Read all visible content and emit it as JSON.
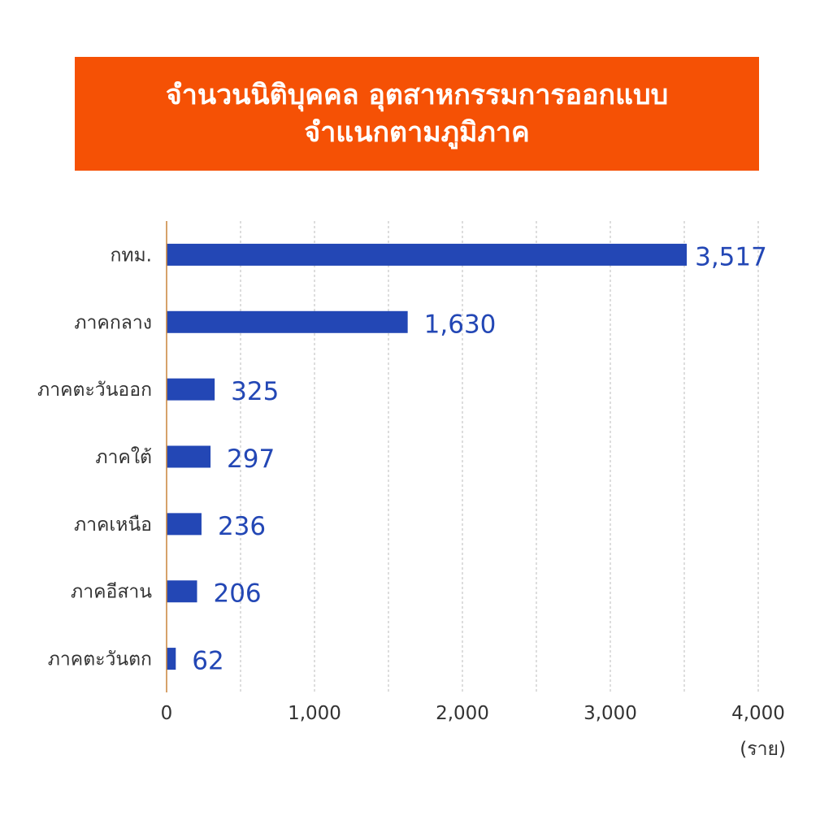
{
  "title": {
    "line1": "จำนวนนิติบุคคล อุตสาหกรรมการออกแบบ",
    "line2": "จำแนกตามภูมิภาค"
  },
  "colors": {
    "title_bg": "#f55105",
    "bar": "#2347b5",
    "value_text": "#2347b5",
    "axis_line": "#c8843a",
    "grid": "#bbbbbb"
  },
  "chart_data": {
    "type": "bar",
    "orientation": "horizontal",
    "categories": [
      "กทม.",
      "ภาคกลาง",
      "ภาคตะวันออก",
      "ภาคใต้",
      "ภาคเหนือ",
      "ภาคอีสาน",
      "ภาคตะวันตก"
    ],
    "values": [
      3517,
      1630,
      325,
      297,
      236,
      206,
      62
    ],
    "value_labels": [
      "3,517",
      "1,630",
      "325",
      "297",
      "236",
      "206",
      "62"
    ],
    "xlim": [
      0,
      4000
    ],
    "xticks": [
      0,
      1000,
      2000,
      3000,
      4000
    ],
    "xtick_labels": [
      "0",
      "1,000",
      "2,000",
      "3,000",
      "4,000"
    ],
    "grid_step": 500,
    "grid": true,
    "unit_label": "(ราย)"
  }
}
